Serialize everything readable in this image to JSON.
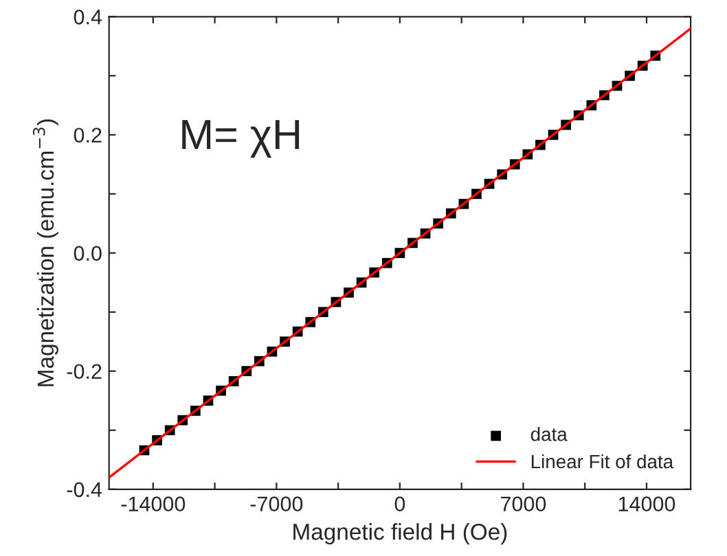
{
  "chart_data": {
    "type": "scatter",
    "xlabel": "Magnetic field H (Oe)",
    "ylabel": "Magnetization (emu.cm$^{−3}$)",
    "annotations": [
      "M= χH"
    ],
    "xlim": [
      -16500,
      16500
    ],
    "ylim": [
      -0.4,
      0.4
    ],
    "xticks": [
      {
        "value": -14000,
        "label": "-14000"
      },
      {
        "value": -10500,
        "label": null
      },
      {
        "value": -7000,
        "label": "-7000"
      },
      {
        "value": -3500,
        "label": null
      },
      0,
      {
        "value": 3500,
        "label": null
      },
      7000,
      {
        "value": 10500,
        "label": null
      },
      14000
    ],
    "yticks": [
      {
        "value": -0.4,
        "label": "-0.4"
      },
      {
        "value": -0.3,
        "label": null
      },
      {
        "value": -0.2,
        "label": "-0.2"
      },
      {
        "value": -0.1,
        "label": null
      },
      {
        "value": 0.0,
        "label": "0.0"
      },
      {
        "value": 0.1,
        "label": null
      },
      0.2,
      {
        "value": 0.3,
        "label": null
      },
      0.4
    ],
    "legend": "lower right",
    "grid": false,
    "series": [
      {
        "name": "data",
        "marker": "square",
        "color": "#000000",
        "x": [
          -14500,
          -13775,
          -13050,
          -12325,
          -11600,
          -10875,
          -10150,
          -9425,
          -8700,
          -7975,
          -7250,
          -6525,
          -5800,
          -5075,
          -4350,
          -3625,
          -2900,
          -2175,
          -1450,
          -725,
          0,
          725,
          1450,
          2175,
          2900,
          3625,
          4350,
          5075,
          5800,
          6525,
          7250,
          7975,
          8700,
          9425,
          10150,
          10875,
          11600,
          12325,
          13050,
          13775,
          14500
        ],
        "values": [
          -0.334,
          -0.317,
          -0.3,
          -0.283,
          -0.267,
          -0.25,
          -0.233,
          -0.217,
          -0.2,
          -0.183,
          -0.167,
          -0.15,
          -0.133,
          -0.117,
          -0.1,
          -0.083,
          -0.067,
          -0.05,
          -0.033,
          -0.017,
          0.0,
          0.017,
          0.033,
          0.05,
          0.067,
          0.083,
          0.1,
          0.117,
          0.133,
          0.15,
          0.167,
          0.183,
          0.2,
          0.217,
          0.233,
          0.25,
          0.267,
          0.283,
          0.3,
          0.317,
          0.334
        ]
      },
      {
        "name": "Linear Fit of data",
        "type": "line",
        "marker": "none",
        "line_style": "solid",
        "color": "#ff0000",
        "x": [
          -16500,
          16500
        ],
        "values": [
          -0.38,
          0.38
        ]
      }
    ]
  }
}
